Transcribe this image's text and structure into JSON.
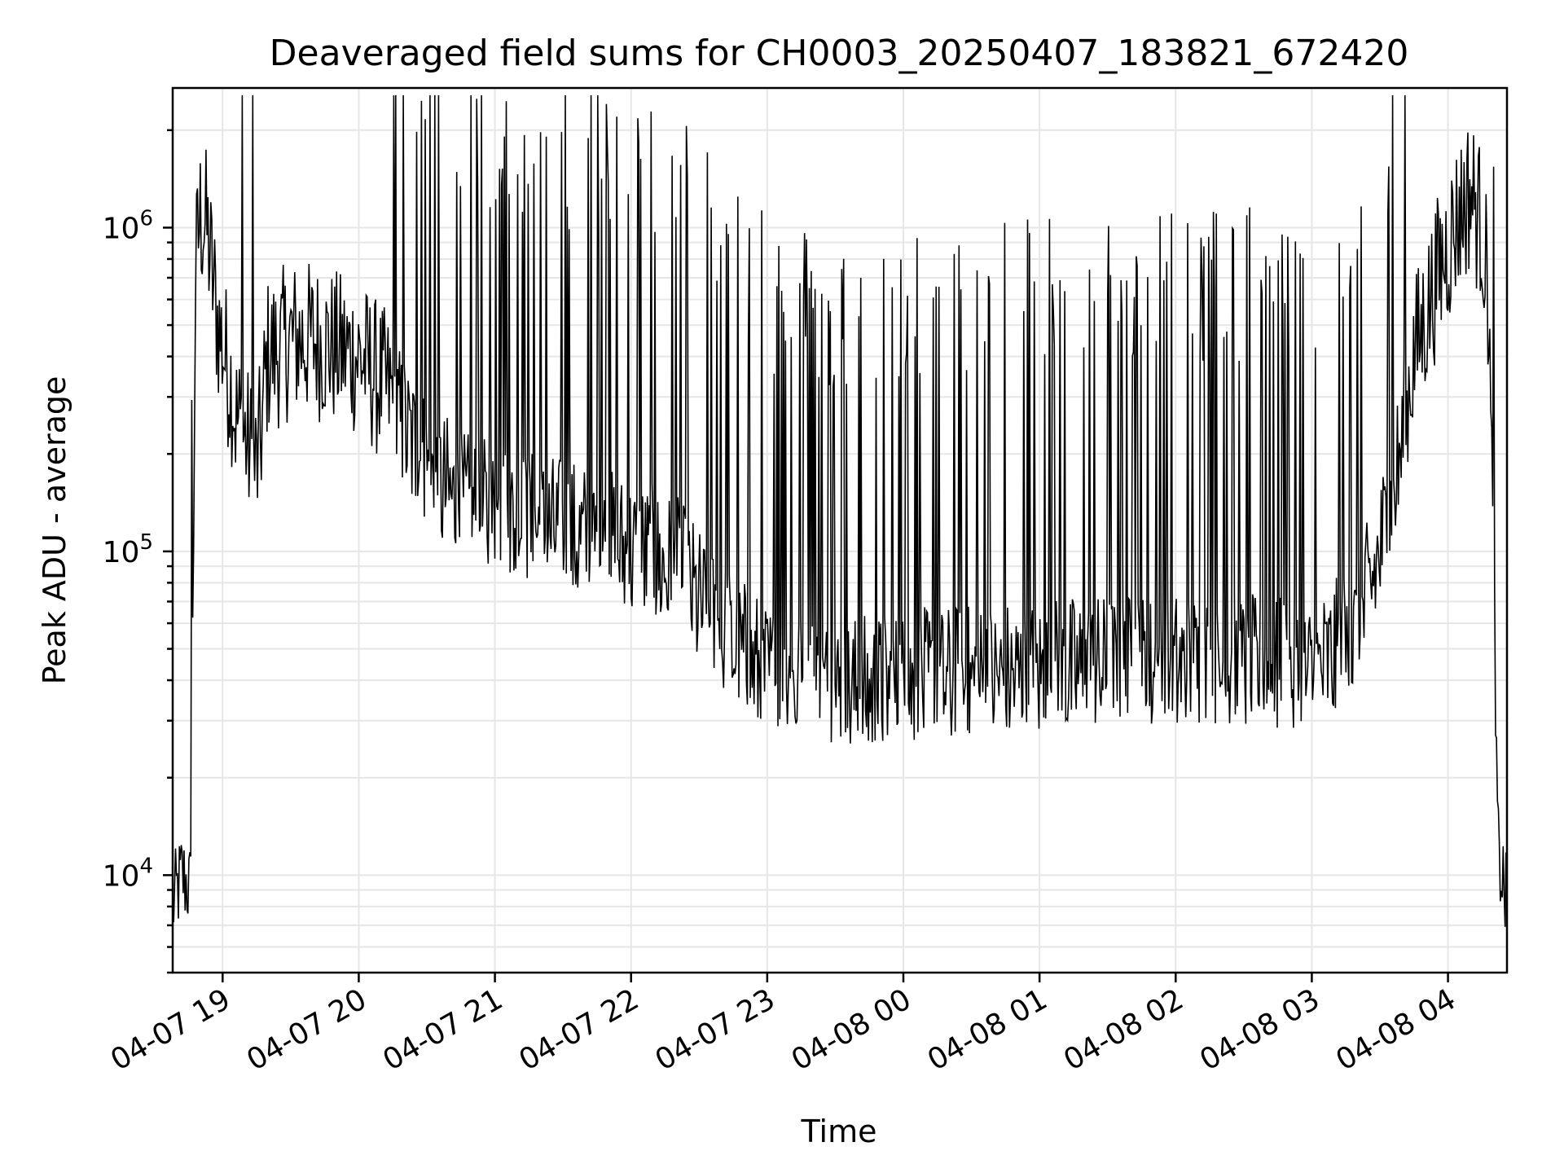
{
  "chart_data": {
    "type": "line",
    "title": "Deaveraged field sums for CH0003_20250407_183821_672420",
    "xlabel": "Time",
    "ylabel": "Peak ADU - average",
    "yscale": "log",
    "ylim": [
      5000,
      2700000
    ],
    "xlim": [
      "2025-04-07 18:38",
      "2025-04-08 04:26"
    ],
    "grid": true,
    "color": "#000000",
    "x_ticks": [
      {
        "label": "04-07 19",
        "value": "2025-04-07 19:00"
      },
      {
        "label": "04-07 20",
        "value": "2025-04-07 20:00"
      },
      {
        "label": "04-07 21",
        "value": "2025-04-07 21:00"
      },
      {
        "label": "04-07 22",
        "value": "2025-04-07 22:00"
      },
      {
        "label": "04-07 23",
        "value": "2025-04-07 23:00"
      },
      {
        "label": "04-08 00",
        "value": "2025-04-08 00:00"
      },
      {
        "label": "04-08 01",
        "value": "2025-04-08 01:00"
      },
      {
        "label": "04-08 02",
        "value": "2025-04-08 02:00"
      },
      {
        "label": "04-08 03",
        "value": "2025-04-08 03:00"
      },
      {
        "label": "04-08 04",
        "value": "2025-04-08 04:00"
      }
    ],
    "y_ticks": [
      {
        "base": "10",
        "exp": "4",
        "value": 10000
      },
      {
        "base": "10",
        "exp": "5",
        "value": 100000
      },
      {
        "base": "10",
        "exp": "6",
        "value": 1000000
      }
    ],
    "series": [
      {
        "x": [
          "2025-04-07 18:38",
          "2025-04-07 18:42",
          "2025-04-07 18:46",
          "2025-04-07 18:48",
          "2025-04-07 18:50",
          "2025-04-07 18:53",
          "2025-04-07 18:58",
          "2025-04-07 19:05",
          "2025-04-07 19:10",
          "2025-04-07 19:15",
          "2025-04-07 19:20",
          "2025-04-07 19:30",
          "2025-04-07 19:40",
          "2025-04-07 19:50",
          "2025-04-07 20:00",
          "2025-04-07 20:15",
          "2025-04-07 20:30",
          "2025-04-07 20:45",
          "2025-04-07 21:00",
          "2025-04-07 21:20",
          "2025-04-07 21:40",
          "2025-04-07 22:00",
          "2025-04-07 22:20",
          "2025-04-07 22:40",
          "2025-04-07 23:00",
          "2025-04-07 23:30",
          "2025-04-08 00:00",
          "2025-04-08 00:30",
          "2025-04-08 01:00",
          "2025-04-08 01:30",
          "2025-04-08 02:00",
          "2025-04-08 02:30",
          "2025-04-08 03:00",
          "2025-04-08 03:20",
          "2025-04-08 03:35",
          "2025-04-08 03:45",
          "2025-04-08 03:55",
          "2025-04-08 04:05",
          "2025-04-08 04:10",
          "2025-04-08 04:15",
          "2025-04-08 04:18",
          "2025-04-08 04:22",
          "2025-04-08 04:26"
        ],
        "y": [
          8000,
          10000,
          9000,
          700000,
          1100000,
          1000000,
          500000,
          300000,
          250000,
          200000,
          400000,
          450000,
          450000,
          420000,
          400000,
          300000,
          200000,
          150000,
          140000,
          130000,
          120000,
          110000,
          95000,
          60000,
          45000,
          40000,
          42000,
          44000,
          46000,
          47000,
          48000,
          47000,
          45000,
          60000,
          150000,
          400000,
          700000,
          1100000,
          1300000,
          1000000,
          600000,
          12000,
          8000
        ]
      }
    ]
  }
}
